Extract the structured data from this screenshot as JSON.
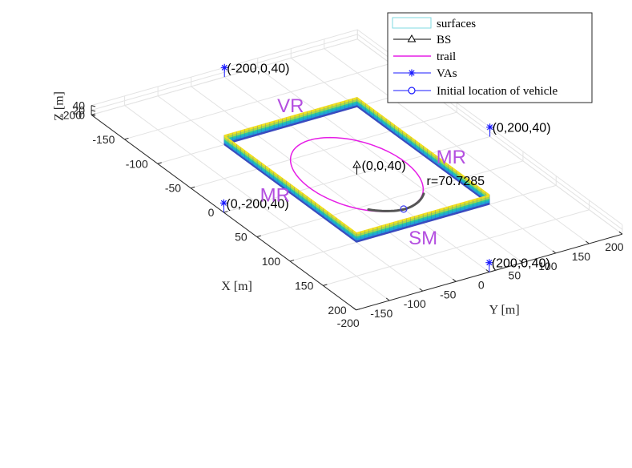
{
  "chart_data": {
    "type": "scatter",
    "view": "3d",
    "xlabel": "X [m]",
    "ylabel": "Y [m]",
    "zlabel": "Z [m]",
    "xlim": [
      -200,
      200
    ],
    "ylim": [
      -200,
      200
    ],
    "zlim": [
      0,
      40
    ],
    "x_ticks": [
      "-200",
      "-150",
      "-100",
      "-50",
      "0",
      "50",
      "100",
      "150",
      "200"
    ],
    "y_ticks": [
      "-200",
      "-150",
      "-100",
      "-50",
      "0",
      "50",
      "100",
      "150",
      "200"
    ],
    "z_ticks": [
      "0",
      "20",
      "40"
    ],
    "grid": true,
    "legend_position": "top-right",
    "legend": {
      "surfaces": "surfaces",
      "bs": "BS",
      "trail": "trail",
      "vas": "VAs",
      "initial": "Initial location of vehicle"
    },
    "colors": {
      "trail": "#e61ee6",
      "va": "#1a1aff",
      "wall_label": "#b44fe0",
      "surface_legend": "#7fd8e0",
      "surfaces_gradient": [
        "#3b4cc0",
        "#20a4d8",
        "#27c8a4",
        "#a8d84a",
        "#f2e020"
      ]
    },
    "bs": {
      "x": 0,
      "y": 0,
      "z": 40,
      "label": "(0,0,40)"
    },
    "vas": [
      {
        "x": -200,
        "y": 0,
        "z": 40,
        "label": "(-200,0,40)"
      },
      {
        "x": 0,
        "y": 200,
        "z": 40,
        "label": "(0,200,40)"
      },
      {
        "x": 0,
        "y": -200,
        "z": 40,
        "label": "(0,-200,40)"
      },
      {
        "x": 200,
        "y": 0,
        "z": 40,
        "label": "(200,0,40)"
      }
    ],
    "walls": [
      {
        "label": "VR",
        "axis": "x",
        "at": -100
      },
      {
        "label": "SM",
        "axis": "x",
        "at": 100
      },
      {
        "label": "MR",
        "axis": "y",
        "at": -100
      },
      {
        "label": "MR",
        "axis": "y",
        "at": 100
      }
    ],
    "wall_height_max": 40,
    "trail": {
      "radius": 70.7285,
      "center": [
        0,
        0
      ],
      "label": "r=70.7285"
    },
    "initial_location": {
      "x": 70.7285,
      "y": 0,
      "z": 0
    }
  }
}
